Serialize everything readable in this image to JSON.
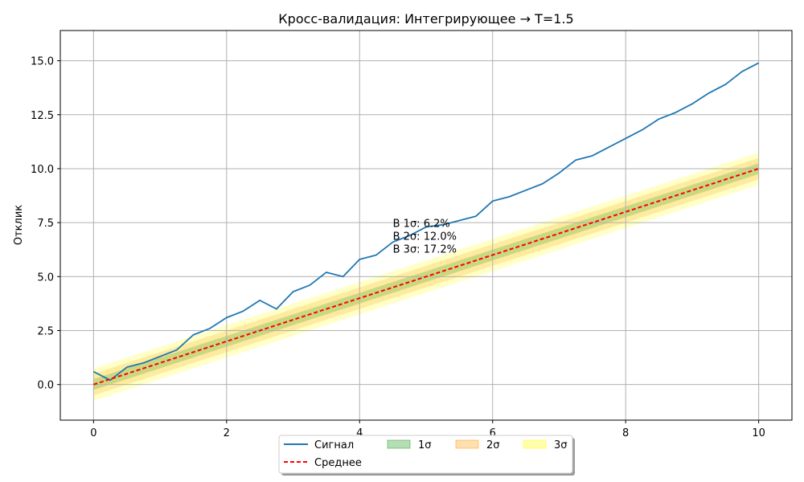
{
  "chart_data": {
    "type": "line",
    "title": "Кросс-валидация: Интегрирующее → T=1.5",
    "xlabel": "",
    "ylabel": "Отклик",
    "xlim": [
      -0.5,
      10.5
    ],
    "ylim": [
      -1.65,
      16.4
    ],
    "x_ticks": [
      0,
      2,
      4,
      6,
      8,
      10
    ],
    "x_tick_labels": [
      "0",
      "2",
      "4",
      "6",
      "8",
      "10"
    ],
    "y_ticks": [
      0.0,
      2.5,
      5.0,
      7.5,
      10.0,
      12.5,
      15.0
    ],
    "y_tick_labels": [
      "0.0",
      "2.5",
      "5.0",
      "7.5",
      "10.0",
      "12.5",
      "15.0"
    ],
    "grid": true,
    "legend_placement": "bottom-center (below axes)",
    "series": [
      {
        "name": "Сигнал",
        "style": "solid",
        "color": "#1f77b4",
        "x": [
          0,
          0.25,
          0.5,
          0.75,
          1.0,
          1.25,
          1.5,
          1.75,
          2.0,
          2.25,
          2.5,
          2.75,
          3.0,
          3.25,
          3.5,
          3.75,
          4.0,
          4.25,
          4.5,
          4.75,
          5.0,
          5.25,
          5.5,
          5.75,
          6.0,
          6.25,
          6.5,
          6.75,
          7.0,
          7.25,
          7.5,
          7.75,
          8.0,
          8.25,
          8.5,
          8.75,
          9.0,
          9.25,
          9.5,
          9.75,
          10.0
        ],
        "values": [
          0.6,
          0.2,
          0.8,
          1.0,
          1.3,
          1.6,
          2.3,
          2.6,
          3.1,
          3.4,
          3.9,
          3.5,
          4.3,
          4.6,
          5.2,
          5.0,
          5.8,
          6.0,
          6.6,
          6.9,
          7.3,
          7.4,
          7.6,
          7.8,
          8.5,
          8.7,
          9.0,
          9.3,
          9.8,
          10.4,
          10.6,
          11.0,
          11.4,
          11.8,
          12.3,
          12.6,
          13.0,
          13.5,
          13.9,
          14.5,
          14.9
        ]
      },
      {
        "name": "Среднее",
        "style": "dashed",
        "color": "#ff0000",
        "x": [
          0,
          10
        ],
        "values": [
          0.0,
          10.0
        ]
      }
    ],
    "bands": [
      {
        "name": "1σ",
        "color": "#2ca02c",
        "opacity": 0.25,
        "halfwidth": 0.25
      },
      {
        "name": "2σ",
        "color": "#ff9900",
        "opacity": 0.2,
        "halfwidth": 0.5
      },
      {
        "name": "3σ",
        "color": "#ffff00",
        "opacity": 0.22,
        "halfwidth": 0.75
      }
    ],
    "annotations": [
      "В 1σ: 6.2%",
      "В 2σ: 12.0%",
      "В 3σ: 17.2%"
    ],
    "annotation_anchor": {
      "x": 4.5,
      "y": 7.3
    }
  }
}
